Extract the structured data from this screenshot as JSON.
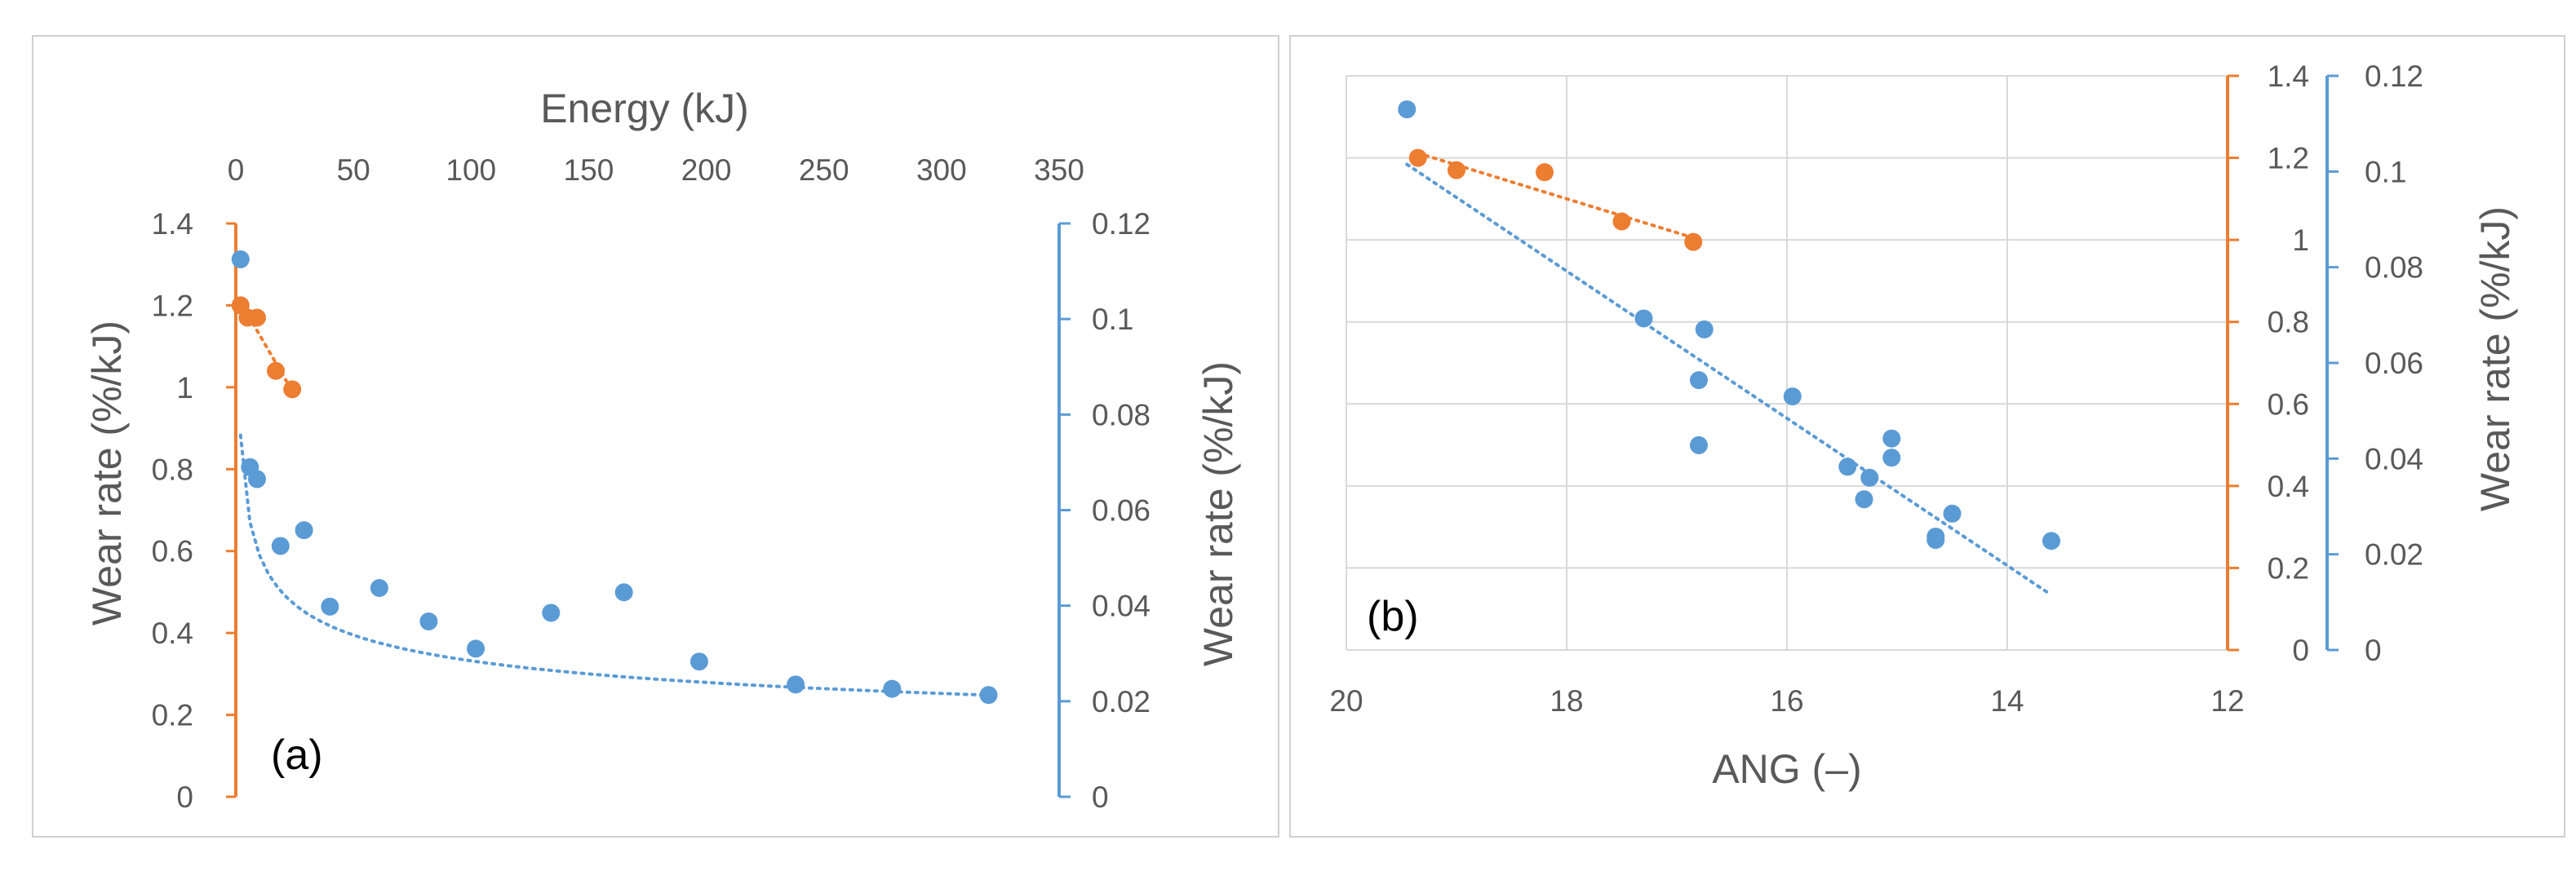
{
  "colors": {
    "blue": "#5B9BD5",
    "orange": "#ED7D31",
    "grid": "#D9D9D9",
    "text": "#595959",
    "frame": "#D0D0D0"
  },
  "chart_data": [
    {
      "type": "scatter",
      "panel_label": "(a)",
      "x_axis": {
        "label": "Energy (kJ)",
        "position": "top",
        "range": [
          0,
          350
        ],
        "ticks": [
          0,
          50,
          100,
          150,
          200,
          250,
          300,
          350
        ],
        "tick_labels": [
          "0",
          "50",
          "100",
          "150",
          "200",
          "250",
          "300",
          "350"
        ]
      },
      "y_axis_left": {
        "label": "Wear rate (%/kJ)",
        "color": "#ED7D31",
        "range": [
          0,
          1.4
        ],
        "ticks": [
          0,
          0.2,
          0.4,
          0.6,
          0.8,
          1,
          1.2,
          1.4
        ],
        "tick_labels": [
          "0",
          "0.2",
          "0.4",
          "0.6",
          "0.8",
          "1",
          "1.2",
          "1.4"
        ]
      },
      "y_axis_right": {
        "label": "Wear rate (%/kJ)",
        "color": "#5B9BD5",
        "range": [
          0,
          0.12
        ],
        "ticks": [
          0,
          0.02,
          0.04,
          0.06,
          0.08,
          0.1,
          0.12
        ],
        "tick_labels": [
          "0",
          "0.02",
          "0.04",
          "0.06",
          "0.08",
          "0.1",
          "0.12"
        ]
      },
      "grid": false,
      "series": [
        {
          "name": "orange",
          "axis": "left",
          "color": "#ED7D31",
          "points": [
            [
              2,
              1.2
            ],
            [
              5,
              1.17
            ],
            [
              9,
              1.17
            ],
            [
              17,
              1.04
            ],
            [
              24,
              0.995
            ]
          ],
          "trendline": {
            "type": "linear",
            "x_range": [
              2,
              24
            ]
          }
        },
        {
          "name": "blue",
          "axis": "right",
          "color": "#5B9BD5",
          "points": [
            [
              2,
              0.1125
            ],
            [
              6,
              0.069
            ],
            [
              9,
              0.0665
            ],
            [
              19,
              0.0525
            ],
            [
              29,
              0.0558
            ],
            [
              40,
              0.0398
            ],
            [
              61,
              0.0437
            ],
            [
              82,
              0.0367
            ],
            [
              102,
              0.031
            ],
            [
              134,
              0.0385
            ],
            [
              165,
              0.0428
            ],
            [
              197,
              0.0283
            ],
            [
              238,
              0.0235
            ],
            [
              279,
              0.0226
            ],
            [
              320,
              0.0213
            ]
          ],
          "trendline": {
            "type": "power",
            "a": 0.09,
            "b": -0.25,
            "x_range": [
              2,
              320
            ]
          }
        }
      ]
    },
    {
      "type": "scatter",
      "panel_label": "(b)",
      "x_axis": {
        "label": "ANG (–)",
        "position": "bottom",
        "reversed": true,
        "range": [
          20,
          12
        ],
        "ticks": [
          20,
          18,
          16,
          14,
          12
        ],
        "tick_labels": [
          "20",
          "18",
          "16",
          "14",
          "12"
        ]
      },
      "y_axis_left": {
        "label": "",
        "range": [
          0,
          1.4
        ],
        "ticks": [
          0,
          0.2,
          0.4,
          0.6,
          0.8,
          1,
          1.2,
          1.4
        ],
        "tick_labels": []
      },
      "y_axis_right_inner": {
        "label": "",
        "color": "#ED7D31",
        "range": [
          0,
          1.4
        ],
        "ticks": [
          0,
          0.2,
          0.4,
          0.6,
          0.8,
          1,
          1.2,
          1.4
        ],
        "tick_labels": [
          "0",
          "0.2",
          "0.4",
          "0.6",
          "0.8",
          "1",
          "1.2",
          "1.4"
        ]
      },
      "y_axis_right_outer": {
        "label": "Wear rate (%/kJ)",
        "color": "#5B9BD5",
        "range": [
          0,
          0.12
        ],
        "ticks": [
          0,
          0.02,
          0.04,
          0.06,
          0.08,
          0.1,
          0.12
        ],
        "tick_labels": [
          "0",
          "0.02",
          "0.04",
          "0.06",
          "0.08",
          "0.1",
          "0.12"
        ]
      },
      "grid": true,
      "series": [
        {
          "name": "orange",
          "axis": "right_inner",
          "color": "#ED7D31",
          "points": [
            [
              19.35,
              1.2
            ],
            [
              19.0,
              1.17
            ],
            [
              18.2,
              1.165
            ],
            [
              17.5,
              1.045
            ],
            [
              16.85,
              0.995
            ]
          ],
          "trendline": {
            "type": "linear",
            "x_range": [
              19.35,
              16.85
            ]
          }
        },
        {
          "name": "blue",
          "axis": "right_outer",
          "color": "#5B9BD5",
          "points": [
            [
              19.45,
              0.113
            ],
            [
              17.3,
              0.0693
            ],
            [
              16.75,
              0.067
            ],
            [
              16.8,
              0.0564
            ],
            [
              16.8,
              0.0428
            ],
            [
              15.95,
              0.053
            ],
            [
              15.45,
              0.0383
            ],
            [
              15.25,
              0.036
            ],
            [
              15.3,
              0.0315
            ],
            [
              15.05,
              0.0442
            ],
            [
              15.05,
              0.0402
            ],
            [
              14.5,
              0.0285
            ],
            [
              14.65,
              0.0237
            ],
            [
              14.65,
              0.023
            ],
            [
              13.6,
              0.0228
            ]
          ],
          "trendline": {
            "type": "linear",
            "x_range": [
              19.45,
              13.6
            ],
            "y_range": [
              0.1015,
              0.0115
            ]
          }
        }
      ]
    }
  ]
}
